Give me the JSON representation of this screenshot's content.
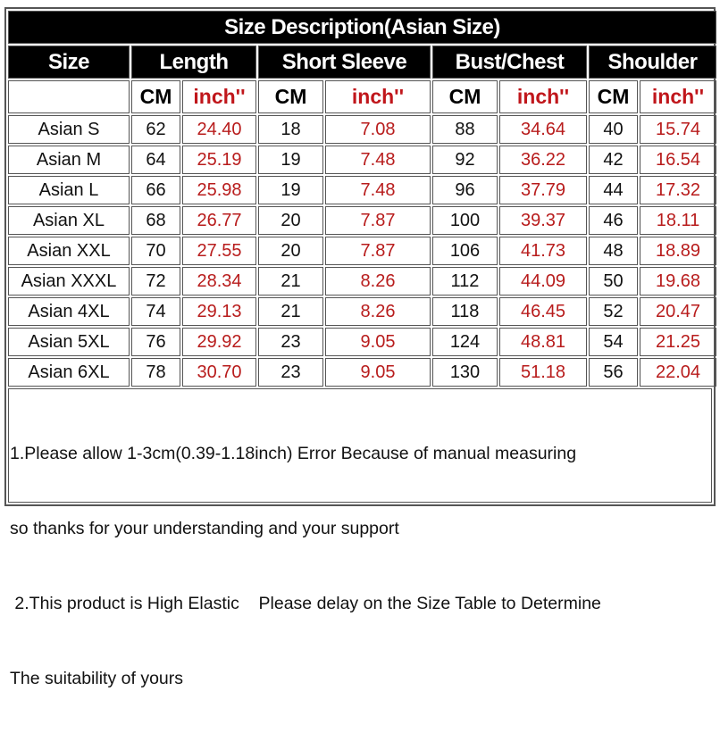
{
  "title": "Size Description(Asian Size)",
  "headers": [
    "Size",
    "Length",
    "Short Sleeve",
    "Bust/Chest",
    "Shoulder"
  ],
  "units": {
    "cm": "CM",
    "inch": "inch''"
  },
  "rows": [
    {
      "size": "Asian S",
      "values": [
        "62",
        "24.40",
        "18",
        "7.08",
        "88",
        "34.64",
        "40",
        "15.74"
      ]
    },
    {
      "size": "Asian M",
      "values": [
        "64",
        "25.19",
        "19",
        "7.48",
        "92",
        "36.22",
        "42",
        "16.54"
      ]
    },
    {
      "size": "Asian L",
      "values": [
        "66",
        "25.98",
        "19",
        "7.48",
        "96",
        "37.79",
        "44",
        "17.32"
      ]
    },
    {
      "size": "Asian XL",
      "values": [
        "68",
        "26.77",
        "20",
        "7.87",
        "100",
        "39.37",
        "46",
        "18.11"
      ]
    },
    {
      "size": "Asian XXL",
      "values": [
        "70",
        "27.55",
        "20",
        "7.87",
        "106",
        "41.73",
        "48",
        "18.89"
      ]
    },
    {
      "size": "Asian XXXL",
      "values": [
        "72",
        "28.34",
        "21",
        "8.26",
        "112",
        "44.09",
        "50",
        "19.68"
      ]
    },
    {
      "size": "Asian 4XL",
      "values": [
        "74",
        "29.13",
        "21",
        "8.26",
        "118",
        "46.45",
        "52",
        "20.47"
      ]
    },
    {
      "size": "Asian 5XL",
      "values": [
        "76",
        "29.92",
        "23",
        "9.05",
        "124",
        "48.81",
        "54",
        "21.25"
      ]
    },
    {
      "size": "Asian 6XL",
      "values": [
        "78",
        "30.70",
        "23",
        "9.05",
        "130",
        "51.18",
        "56",
        "22.04"
      ]
    }
  ],
  "notes": [
    "1.Please allow 1-3cm(0.39-1.18inch) Error Because of manual measuring",
    "so thanks for your understanding and your support",
    " 2.This product is High Elastic    Please delay on the Size Table to Determine",
    "The suitability of yours"
  ],
  "colors": {
    "header_bg": "#000000",
    "header_text": "#ffffff",
    "inch_text": "#b81c1c"
  }
}
